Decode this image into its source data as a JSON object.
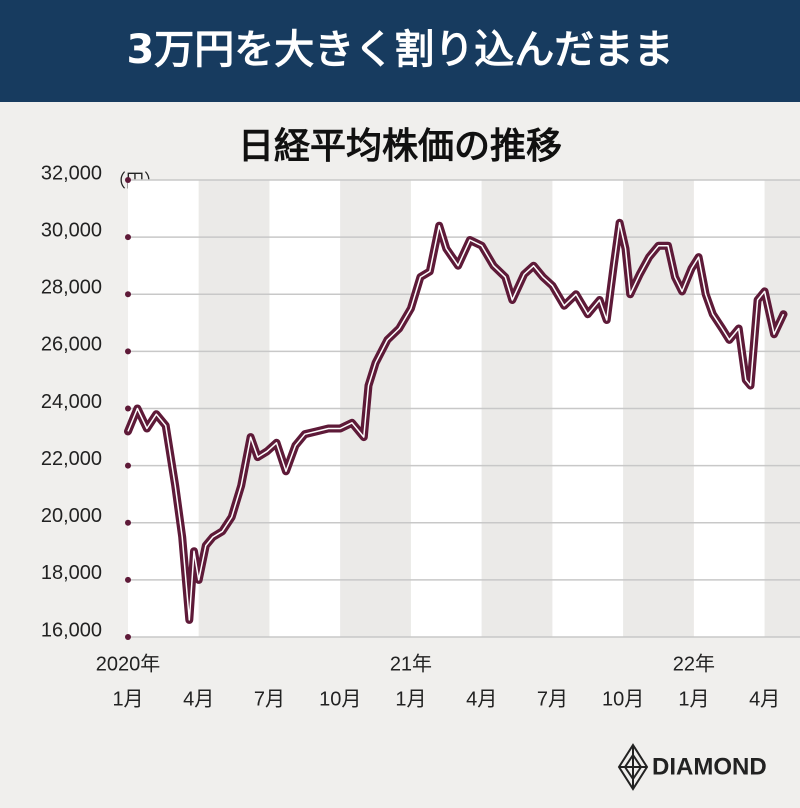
{
  "header": {
    "title": "3万円を大きく割り込んだまま"
  },
  "chart_data": {
    "type": "line",
    "title": "日経平均株価の推移",
    "y_unit": "（円）",
    "x": [
      0,
      0.4,
      0.8,
      1.2,
      1.6,
      2.0,
      2.3,
      2.6,
      2.8,
      3.0,
      3.3,
      3.6,
      4.0,
      4.4,
      4.8,
      5.2,
      5.5,
      5.9,
      6.3,
      6.7,
      7.1,
      7.5,
      8.0,
      8.5,
      9.0,
      9.5,
      10.0,
      10.2,
      10.5,
      11.0,
      11.5,
      12.0,
      12.4,
      12.8,
      13.2,
      13.5,
      14.0,
      14.5,
      15.0,
      15.5,
      16.0,
      16.3,
      16.8,
      17.2,
      17.6,
      18.0,
      18.5,
      19.0,
      19.5,
      20.0,
      20.3,
      20.6,
      20.85,
      21.1,
      21.3,
      21.7,
      22.1,
      22.5,
      22.9,
      23.2,
      23.5,
      23.9,
      24.2,
      24.5,
      24.8,
      25.2,
      25.5,
      25.9,
      26.2,
      26.4,
      26.7,
      27.0,
      27.4,
      27.8
    ],
    "series": [
      {
        "name": "日経平均株価",
        "color": "#5e1a38",
        "values": [
          23200,
          24000,
          23300,
          23800,
          23400,
          21300,
          19500,
          16600,
          19000,
          18000,
          19200,
          19500,
          19700,
          20200,
          21300,
          23000,
          22300,
          22500,
          22800,
          21800,
          22700,
          23100,
          23200,
          23300,
          23300,
          23500,
          23000,
          24800,
          25600,
          26400,
          26800,
          27500,
          28600,
          28800,
          30400,
          29600,
          29000,
          29900,
          29700,
          29000,
          28600,
          27800,
          28700,
          29000,
          28600,
          28300,
          27600,
          28000,
          27300,
          27800,
          27100,
          29000,
          30500,
          29600,
          28000,
          28700,
          29300,
          29700,
          29700,
          28600,
          28100,
          28900,
          29300,
          28000,
          27300,
          26800,
          26400,
          26800,
          25000,
          24800,
          27800,
          28100,
          26600,
          27300
        ]
      }
    ],
    "xlim": [
      0,
      28.5
    ],
    "xticks": [
      {
        "value": 0,
        "label": "1月"
      },
      {
        "value": 3,
        "label": "4月"
      },
      {
        "value": 6,
        "label": "7月"
      },
      {
        "value": 9,
        "label": "10月"
      },
      {
        "value": 12,
        "label": "1月"
      },
      {
        "value": 15,
        "label": "4月"
      },
      {
        "value": 18,
        "label": "7月"
      },
      {
        "value": 21,
        "label": "10月"
      },
      {
        "value": 24,
        "label": "1月"
      },
      {
        "value": 27,
        "label": "4月"
      }
    ],
    "year_labels": [
      {
        "value": 0,
        "label": "2020年"
      },
      {
        "value": 12,
        "label": "21年"
      },
      {
        "value": 24,
        "label": "22年"
      }
    ],
    "ylim": [
      16000,
      32000
    ],
    "yticks": [
      {
        "value": 16000,
        "label": "16,000"
      },
      {
        "value": 18000,
        "label": "18,000"
      },
      {
        "value": 20000,
        "label": "20,000"
      },
      {
        "value": 22000,
        "label": "22,000"
      },
      {
        "value": 24000,
        "label": "24,000"
      },
      {
        "value": 26000,
        "label": "26,000"
      },
      {
        "value": 28000,
        "label": "28,000"
      },
      {
        "value": 30000,
        "label": "30,000"
      },
      {
        "value": 32000,
        "label": "32,000"
      }
    ],
    "grid": true
  },
  "footer": {
    "logo": "DIAMOND"
  }
}
